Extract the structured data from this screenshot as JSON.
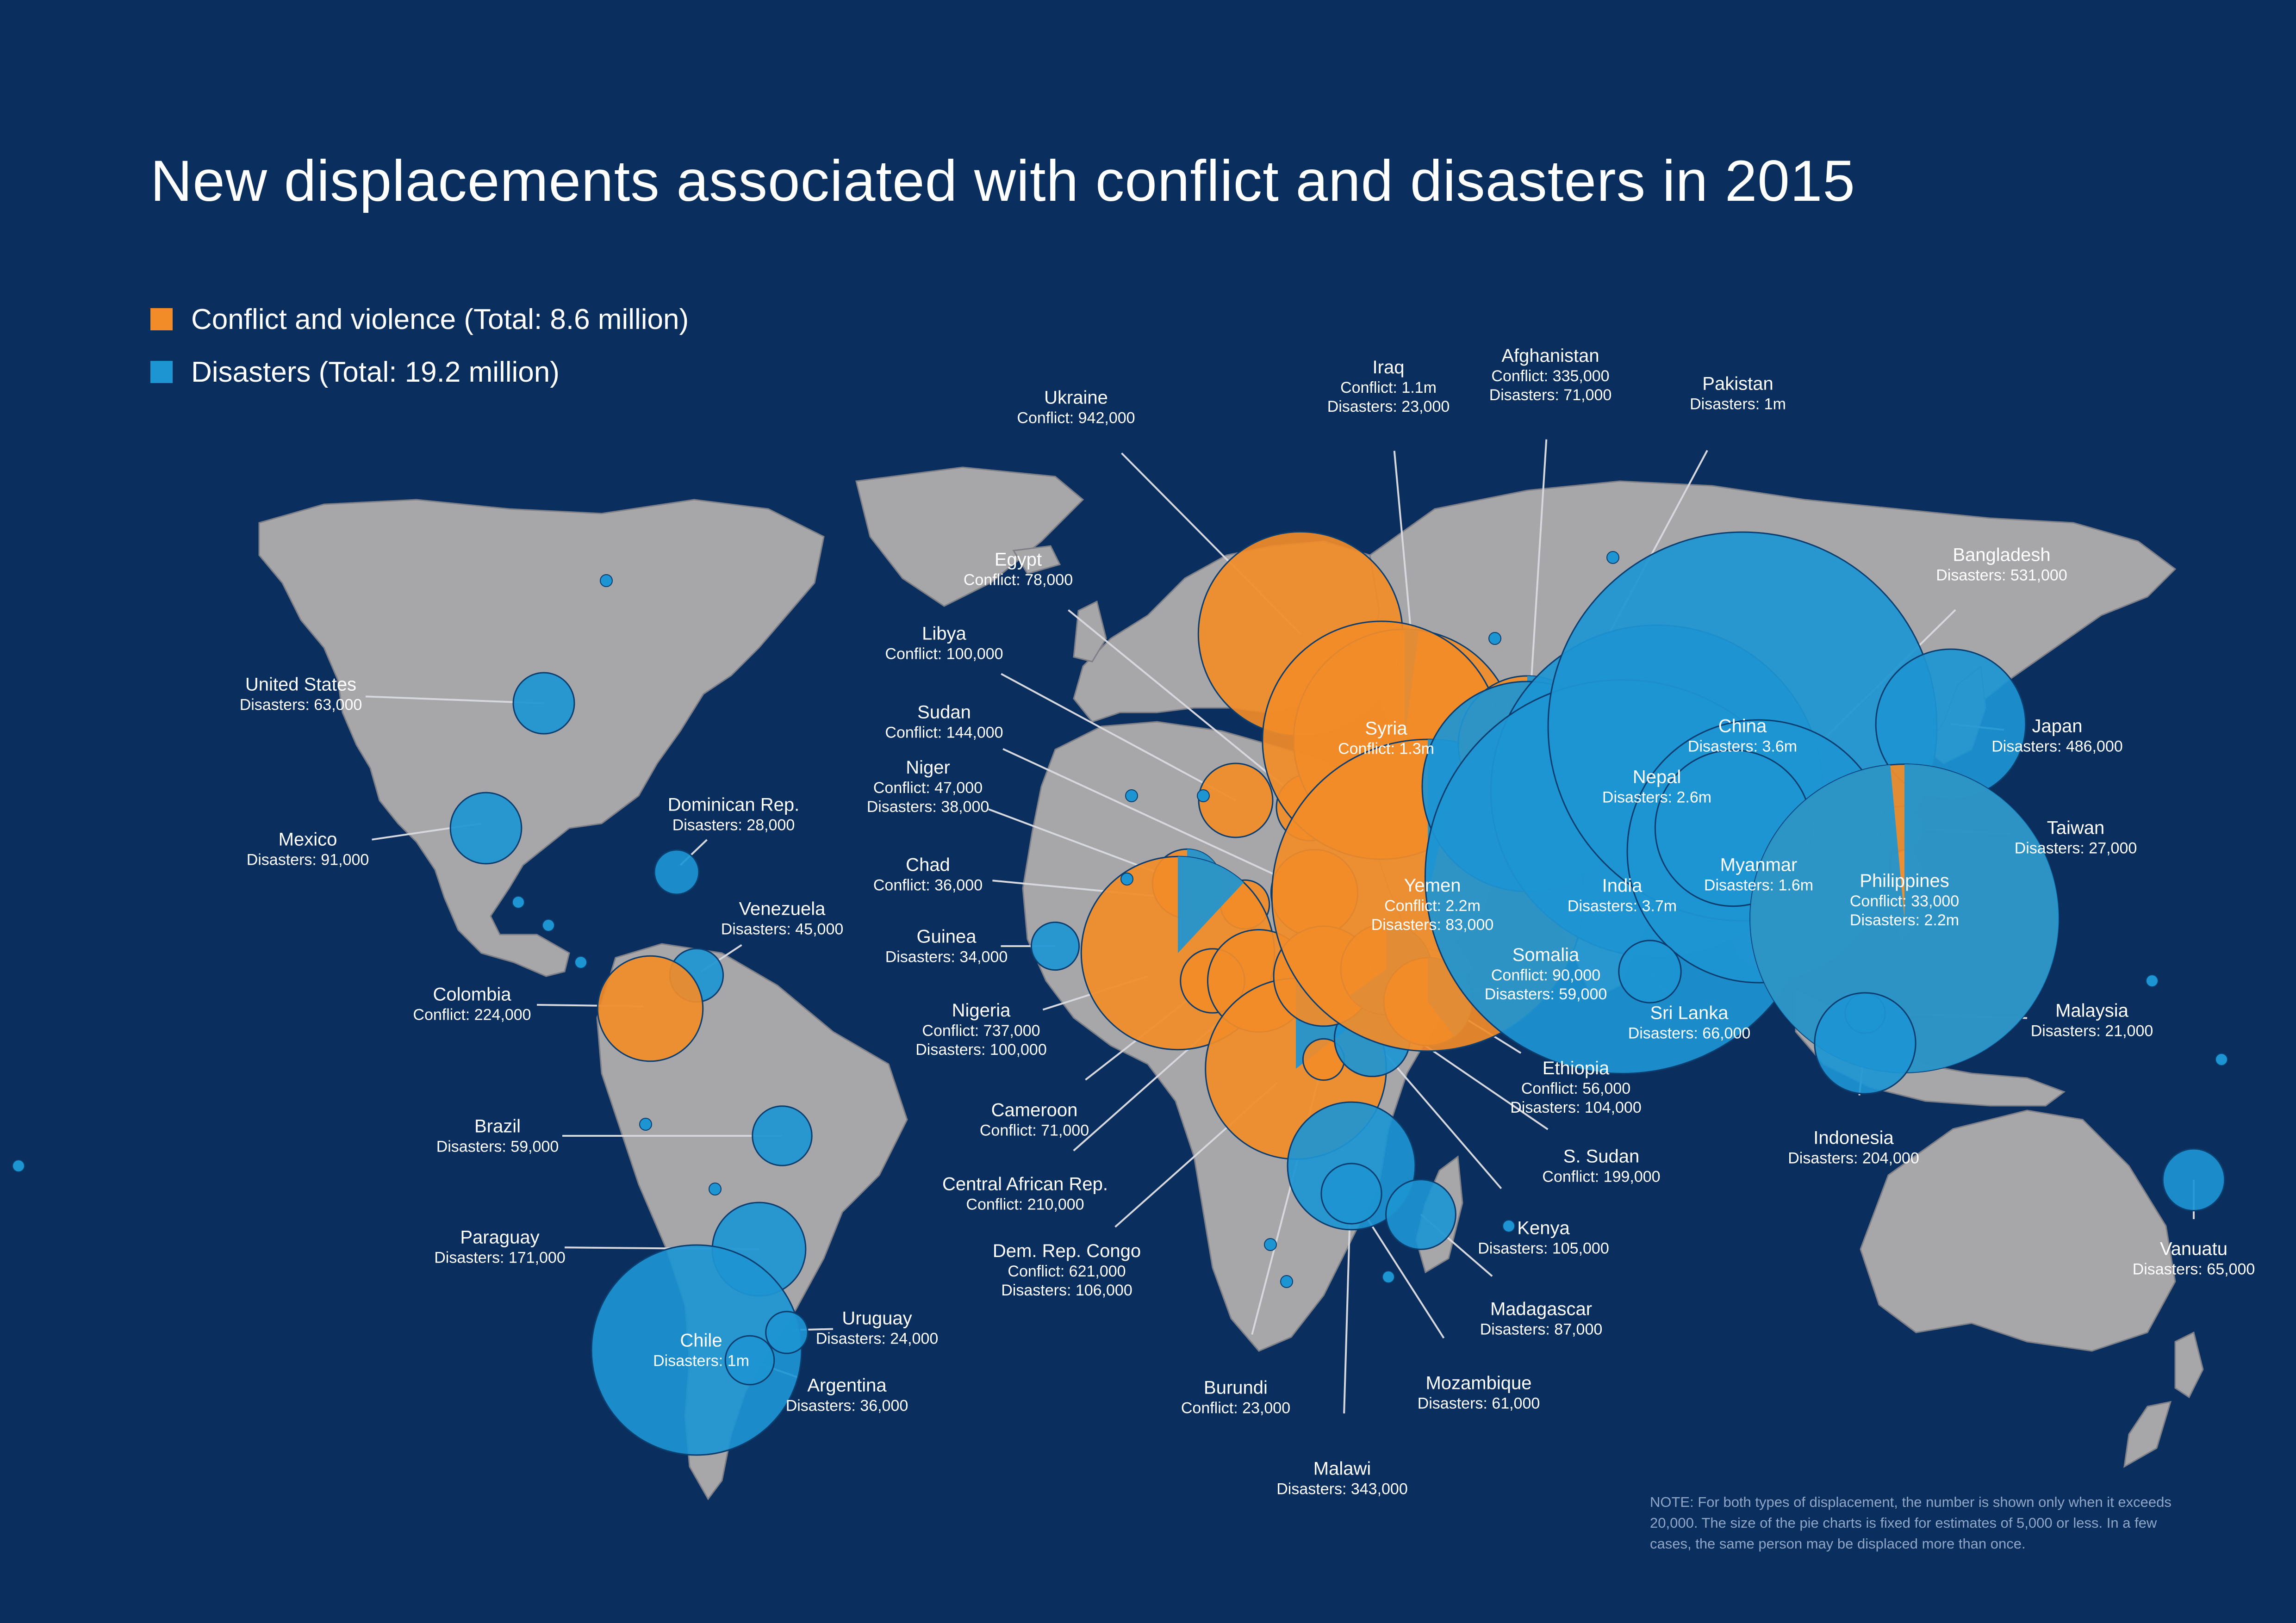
{
  "title": "New displacements associated with conflict and disasters in 2015",
  "legend": [
    {
      "label": "Conflict and violence (Total: 8.6 million)",
      "color": "#f28c28"
    },
    {
      "label": "Disasters (Total: 19.2 million)",
      "color": "#1d95d3"
    }
  ],
  "colors": {
    "background": "#0a2f5e",
    "land": "#a7a6a8",
    "conflict": "#f28c28",
    "disasters": "#1d95d3"
  },
  "countries": [
    {
      "name": "United States",
      "line1": "Disasters: 63,000",
      "conflict": 0,
      "disasters": 63000
    },
    {
      "name": "Mexico",
      "line1": "Disasters: 91,000",
      "conflict": 0,
      "disasters": 91000
    },
    {
      "name": "Dominican Rep.",
      "line1": "Disasters: 28,000",
      "conflict": 0,
      "disasters": 28000
    },
    {
      "name": "Venezuela",
      "line1": "Disasters: 45,000",
      "conflict": 0,
      "disasters": 45000
    },
    {
      "name": "Colombia",
      "line1": "Conflict: 224,000",
      "conflict": 224000,
      "disasters": 0
    },
    {
      "name": "Brazil",
      "line1": "Disasters: 59,000",
      "conflict": 0,
      "disasters": 59000
    },
    {
      "name": "Paraguay",
      "line1": "Disasters: 171,000",
      "conflict": 0,
      "disasters": 171000
    },
    {
      "name": "Chile",
      "line1": "Disasters: 1m",
      "conflict": 0,
      "disasters": 1000000
    },
    {
      "name": "Uruguay",
      "line1": "Disasters: 24,000",
      "conflict": 0,
      "disasters": 24000
    },
    {
      "name": "Argentina",
      "line1": "Disasters: 36,000",
      "conflict": 0,
      "disasters": 36000
    },
    {
      "name": "Ukraine",
      "line1": "Conflict: 942,000",
      "conflict": 942000,
      "disasters": 0
    },
    {
      "name": "Egypt",
      "line1": "Conflict: 78,000",
      "conflict": 78000,
      "disasters": 0
    },
    {
      "name": "Libya",
      "line1": "Conflict: 100,000",
      "conflict": 100000,
      "disasters": 0
    },
    {
      "name": "Sudan",
      "line1": "Conflict: 144,000",
      "conflict": 144000,
      "disasters": 0
    },
    {
      "name": "Niger",
      "line1": "Conflict: 47,000",
      "line2": "Disasters: 38,000",
      "conflict": 47000,
      "disasters": 38000
    },
    {
      "name": "Chad",
      "line1": "Conflict: 36,000",
      "conflict": 36000,
      "disasters": 0
    },
    {
      "name": "Guinea",
      "line1": "Disasters: 34,000",
      "conflict": 0,
      "disasters": 34000
    },
    {
      "name": "Nigeria",
      "line1": "Conflict: 737,000",
      "line2": "Disasters: 100,000",
      "conflict": 737000,
      "disasters": 100000
    },
    {
      "name": "Cameroon",
      "line1": "Conflict: 71,000",
      "conflict": 71000,
      "disasters": 0
    },
    {
      "name": "Central African Rep.",
      "line1": "Conflict: 210,000",
      "conflict": 210000,
      "disasters": 0
    },
    {
      "name": "Dem. Rep. Congo",
      "line1": "Conflict: 621,000",
      "line2": "Disasters: 106,000",
      "conflict": 621000,
      "disasters": 106000
    },
    {
      "name": "Burundi",
      "line1": "Conflict: 23,000",
      "conflict": 23000,
      "disasters": 0
    },
    {
      "name": "Malawi",
      "line1": "Disasters: 343,000",
      "conflict": 0,
      "disasters": 343000
    },
    {
      "name": "Mozambique",
      "line1": "Disasters: 61,000",
      "conflict": 0,
      "disasters": 61000
    },
    {
      "name": "Madagascar",
      "line1": "Disasters: 87,000",
      "conflict": 0,
      "disasters": 87000
    },
    {
      "name": "Kenya",
      "line1": "Disasters: 105,000",
      "conflict": 0,
      "disasters": 105000
    },
    {
      "name": "S. Sudan",
      "line1": "Conflict: 199,000",
      "conflict": 199000,
      "disasters": 0
    },
    {
      "name": "Ethiopia",
      "line1": "Conflict: 56,000",
      "line2": "Disasters: 104,000",
      "conflict": 56000,
      "disasters": 104000
    },
    {
      "name": "Somalia",
      "line1": "Conflict: 90,000",
      "line2": "Disasters: 59,000",
      "conflict": 90000,
      "disasters": 59000
    },
    {
      "name": "Iraq",
      "line1": "Conflict: 1.1m",
      "line2": "Disasters: 23,000",
      "conflict": 1100000,
      "disasters": 23000
    },
    {
      "name": "Syria",
      "line1": "Conflict: 1.3m",
      "conflict": 1300000,
      "disasters": 0
    },
    {
      "name": "Yemen",
      "line1": "Conflict: 2.2m",
      "line2": "Disasters: 83,000",
      "conflict": 2200000,
      "disasters": 83000
    },
    {
      "name": "Afghanistan",
      "line1": "Conflict: 335,000",
      "line2": "Disasters: 71,000",
      "conflict": 335000,
      "disasters": 71000
    },
    {
      "name": "Pakistan",
      "line1": "Disasters: 1m",
      "conflict": 0,
      "disasters": 1000000
    },
    {
      "name": "Nepal",
      "line1": "Disasters: 2.6m",
      "conflict": 0,
      "disasters": 2600000
    },
    {
      "name": "India",
      "line1": "Disasters: 3.7m",
      "conflict": 0,
      "disasters": 3700000
    },
    {
      "name": "China",
      "line1": "Disasters: 3.6m",
      "conflict": 0,
      "disasters": 3600000
    },
    {
      "name": "Myanmar",
      "line1": "Disasters: 1.6m",
      "conflict": 0,
      "disasters": 1600000
    },
    {
      "name": "Bangladesh",
      "line1": "Disasters: 531,000",
      "conflict": 0,
      "disasters": 531000
    },
    {
      "name": "Sri Lanka",
      "line1": "Disasters: 66,000",
      "conflict": 0,
      "disasters": 66000
    },
    {
      "name": "Japan",
      "line1": "Disasters: 486,000",
      "conflict": 0,
      "disasters": 486000
    },
    {
      "name": "Taiwan",
      "line1": "Disasters: 27,000",
      "conflict": 0,
      "disasters": 27000
    },
    {
      "name": "Philippines",
      "line1": "Conflict: 33,000",
      "line2": "Disasters: 2.2m",
      "conflict": 33000,
      "disasters": 2200000
    },
    {
      "name": "Malaysia",
      "line1": "Disasters: 21,000",
      "conflict": 0,
      "disasters": 21000
    },
    {
      "name": "Indonesia",
      "line1": "Disasters: 204,000",
      "conflict": 0,
      "disasters": 204000
    },
    {
      "name": "Vanuatu",
      "line1": "Disasters: 65,000",
      "conflict": 0,
      "disasters": 65000
    }
  ],
  "note": "NOTE: For both types of displacement, the number is shown only when it exceeds 20,000. The size of the pie charts is fixed for estimates of 5,000 or less. In a few cases, the same person may be displaced more than once."
}
